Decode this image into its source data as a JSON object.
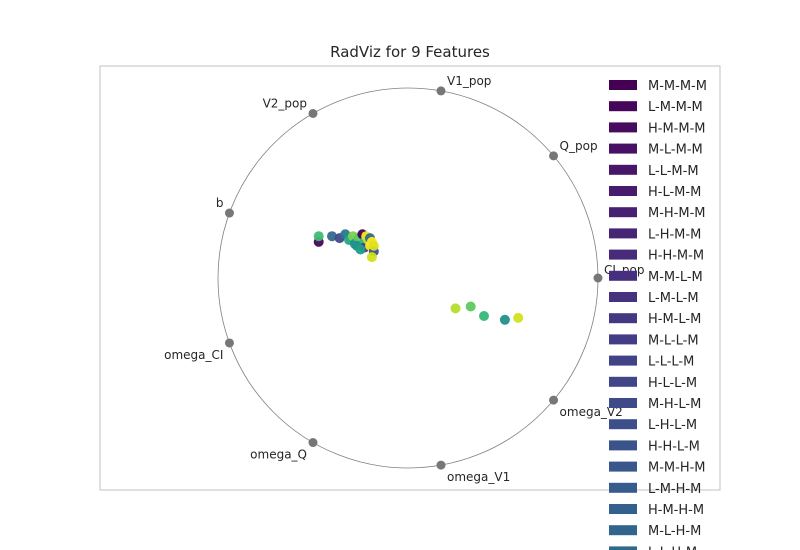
{
  "chart_data": {
    "type": "scatter",
    "title": "RadViz for 9 Features",
    "anchors": [
      "CI_pop",
      "Q_pop",
      "V1_pop",
      "V2_pop",
      "b",
      "omega_CI",
      "omega_Q",
      "omega_V1",
      "omega_V2"
    ],
    "legend_placement": "right",
    "grid": false,
    "colormap": "viridis",
    "series": [
      {
        "name": "M-M-M-M",
        "color": "#440154"
      },
      {
        "name": "L-M-M-M",
        "color": "#46065a"
      },
      {
        "name": "H-M-M-M",
        "color": "#470c5f"
      },
      {
        "name": "M-L-M-M",
        "color": "#471164"
      },
      {
        "name": "L-L-M-M",
        "color": "#481668"
      },
      {
        "name": "H-L-M-M",
        "color": "#481b6d"
      },
      {
        "name": "M-H-M-M",
        "color": "#482071"
      },
      {
        "name": "L-H-M-M",
        "color": "#472575"
      },
      {
        "name": "H-H-M-M",
        "color": "#472a7a"
      },
      {
        "name": "M-M-L-M",
        "color": "#462f7e"
      },
      {
        "name": "L-M-L-M",
        "color": "#453380"
      },
      {
        "name": "H-M-L-M",
        "color": "#443883"
      },
      {
        "name": "M-L-L-M",
        "color": "#433d85"
      },
      {
        "name": "L-L-L-M",
        "color": "#414287"
      },
      {
        "name": "H-L-L-M",
        "color": "#404688"
      },
      {
        "name": "M-H-L-M",
        "color": "#3e4a89"
      },
      {
        "name": "L-H-L-M",
        "color": "#3c4f8a"
      },
      {
        "name": "H-H-L-M",
        "color": "#3a538b"
      },
      {
        "name": "M-M-H-M",
        "color": "#38588c"
      },
      {
        "name": "L-M-H-M",
        "color": "#365c8d"
      },
      {
        "name": "H-M-H-M",
        "color": "#34608d"
      },
      {
        "name": "M-L-H-M",
        "color": "#32648e"
      },
      {
        "name": "L-L-H-M",
        "color": "#30688e"
      }
    ],
    "points": [
      {
        "x": -0.47,
        "y": 0.19,
        "color": "#46065a"
      },
      {
        "x": -0.47,
        "y": 0.22,
        "color": "#3fbc73"
      },
      {
        "x": -0.4,
        "y": 0.22,
        "color": "#31688e"
      },
      {
        "x": -0.36,
        "y": 0.21,
        "color": "#3e4a89"
      },
      {
        "x": -0.33,
        "y": 0.23,
        "color": "#2a788e"
      },
      {
        "x": -0.31,
        "y": 0.2,
        "color": "#22a884"
      },
      {
        "x": -0.29,
        "y": 0.22,
        "color": "#7ad151"
      },
      {
        "x": -0.28,
        "y": 0.18,
        "color": "#21918c"
      },
      {
        "x": -0.26,
        "y": 0.21,
        "color": "#5ec962"
      },
      {
        "x": -0.24,
        "y": 0.23,
        "color": "#440154"
      },
      {
        "x": -0.23,
        "y": 0.19,
        "color": "#35b779"
      },
      {
        "x": -0.23,
        "y": 0.16,
        "color": "#443983"
      },
      {
        "x": -0.22,
        "y": 0.22,
        "color": "#fde725"
      },
      {
        "x": -0.21,
        "y": 0.2,
        "color": "#bddf26"
      },
      {
        "x": -0.2,
        "y": 0.17,
        "color": "#fde725"
      },
      {
        "x": -0.2,
        "y": 0.21,
        "color": "#31688e"
      },
      {
        "x": -0.19,
        "y": 0.19,
        "color": "#fde725"
      },
      {
        "x": -0.18,
        "y": 0.14,
        "color": "#3b528b"
      },
      {
        "x": -0.18,
        "y": 0.17,
        "color": "#dce319"
      },
      {
        "x": -0.19,
        "y": 0.11,
        "color": "#d2e21b"
      },
      {
        "x": -0.27,
        "y": 0.17,
        "color": "#21918c"
      },
      {
        "x": -0.25,
        "y": 0.15,
        "color": "#1f9e89"
      },
      {
        "x": 0.25,
        "y": -0.16,
        "color": "#b5de2b"
      },
      {
        "x": 0.33,
        "y": -0.15,
        "color": "#5ec962"
      },
      {
        "x": 0.4,
        "y": -0.2,
        "color": "#35b779"
      },
      {
        "x": 0.51,
        "y": -0.22,
        "color": "#21918c"
      },
      {
        "x": 0.58,
        "y": -0.21,
        "color": "#d2e21b"
      }
    ]
  }
}
